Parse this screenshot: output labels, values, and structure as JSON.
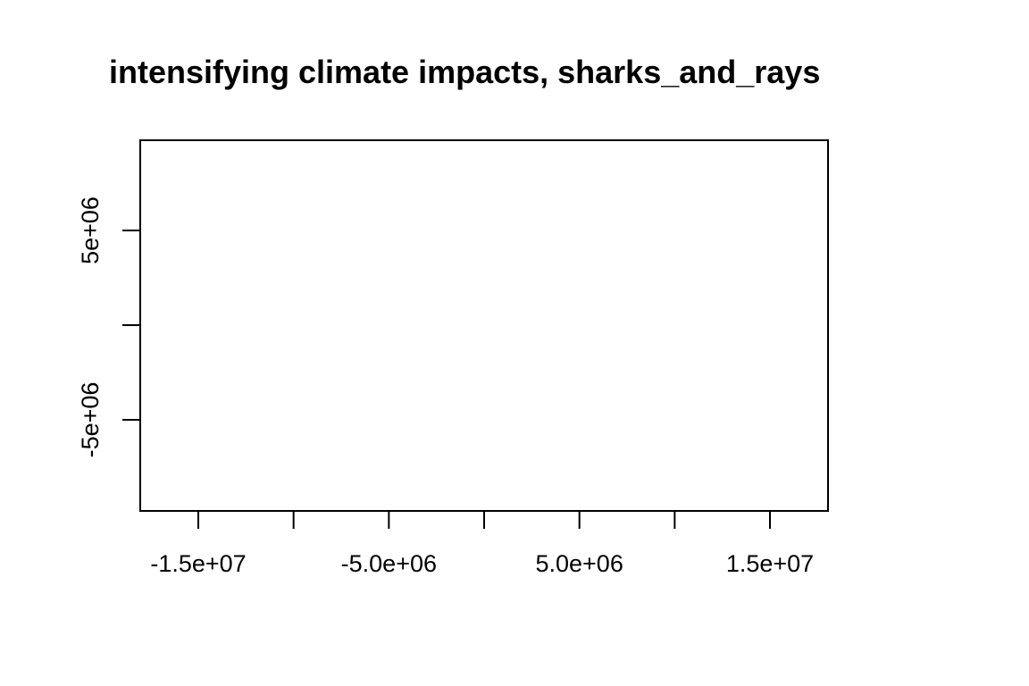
{
  "chart_data": {
    "type": "scatter",
    "title": "intensifying climate impacts, sharks_and_rays",
    "xlabel": "",
    "ylabel": "",
    "xlim": [
      -18000000,
      18000000
    ],
    "ylim": [
      -9500000,
      10000000
    ],
    "x_ticks": [
      {
        "value": -15000000,
        "label": "-1.5e+07"
      },
      {
        "value": -10000000,
        "label": ""
      },
      {
        "value": -5000000,
        "label": "-5.0e+06"
      },
      {
        "value": 0,
        "label": ""
      },
      {
        "value": 5000000,
        "label": "5.0e+06"
      },
      {
        "value": 10000000,
        "label": ""
      },
      {
        "value": 15000000,
        "label": "1.5e+07"
      }
    ],
    "y_ticks": [
      {
        "value": -5000000,
        "label": "-5e+06"
      },
      {
        "value": 0,
        "label": ""
      },
      {
        "value": 5000000,
        "label": "5e+06"
      }
    ],
    "series": [],
    "grid": false,
    "legend": "none"
  }
}
